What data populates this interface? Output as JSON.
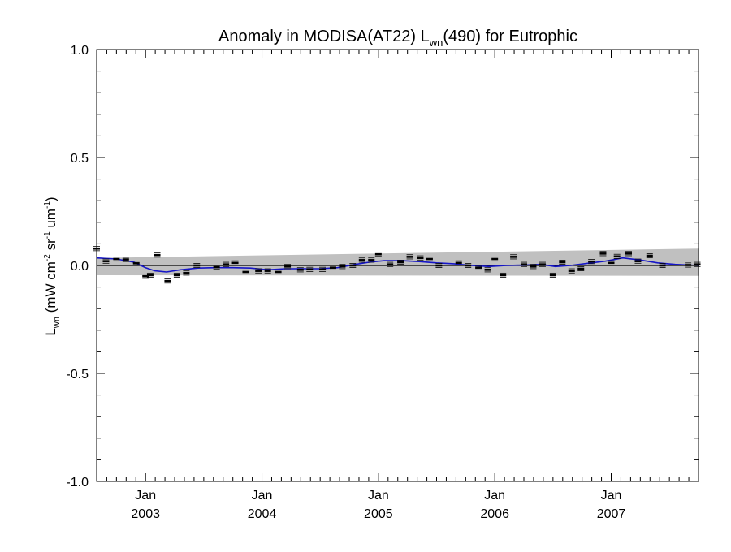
{
  "chart_data": {
    "type": "line",
    "title": "Anomaly in MODISA(AT22) L",
    "title_sub": "wn",
    "title_suffix": "(490) for Eutrophic",
    "ylabel": {
      "base": "L",
      "base_sub": "wn",
      "unit_open": " (mW cm",
      "exp1": "-2",
      "mid": " sr",
      "exp2": "-1",
      "tail": " um",
      "exp3": "-1",
      "close": ")"
    },
    "xlim": [
      2002.58,
      2007.75
    ],
    "ylim": [
      -1.0,
      1.0
    ],
    "yticks": [
      {
        "value": 1.0,
        "label": "1.0"
      },
      {
        "value": 0.5,
        "label": "0.5"
      },
      {
        "value": 0.0,
        "label": "0.0"
      },
      {
        "value": -0.5,
        "label": "-0.5"
      },
      {
        "value": -1.0,
        "label": "-1.0"
      }
    ],
    "xticks": [
      {
        "value": 2003.0,
        "month": "Jan",
        "year": "2003"
      },
      {
        "value": 2004.0,
        "month": "Jan",
        "year": "2004"
      },
      {
        "value": 2005.0,
        "month": "Jan",
        "year": "2005"
      },
      {
        "value": 2006.0,
        "month": "Jan",
        "year": "2006"
      },
      {
        "value": 2007.0,
        "month": "Jan",
        "year": "2007"
      }
    ],
    "zero_line": 0.0,
    "band": {
      "x": [
        2002.58,
        2007.75
      ],
      "upper": [
        0.035,
        0.078
      ],
      "lower": [
        -0.045,
        -0.048
      ]
    },
    "colors": {
      "band": "#c0c0c0",
      "smooth": "#1515c8",
      "points": "#000000"
    },
    "points": [
      {
        "x": 2002.58,
        "y": 0.078
      },
      {
        "x": 2002.66,
        "y": 0.02
      },
      {
        "x": 2002.75,
        "y": 0.03
      },
      {
        "x": 2002.83,
        "y": 0.028
      },
      {
        "x": 2002.92,
        "y": 0.01
      },
      {
        "x": 2003.0,
        "y": -0.05
      },
      {
        "x": 2003.04,
        "y": -0.045
      },
      {
        "x": 2003.1,
        "y": 0.048
      },
      {
        "x": 2003.19,
        "y": -0.072
      },
      {
        "x": 2003.27,
        "y": -0.045
      },
      {
        "x": 2003.35,
        "y": -0.035
      },
      {
        "x": 2003.44,
        "y": 0.0
      },
      {
        "x": 2003.61,
        "y": -0.008
      },
      {
        "x": 2003.69,
        "y": 0.005
      },
      {
        "x": 2003.77,
        "y": 0.012
      },
      {
        "x": 2003.86,
        "y": -0.03
      },
      {
        "x": 2003.97,
        "y": -0.025
      },
      {
        "x": 2004.05,
        "y": -0.025
      },
      {
        "x": 2004.14,
        "y": -0.03
      },
      {
        "x": 2004.22,
        "y": -0.005
      },
      {
        "x": 2004.33,
        "y": -0.02
      },
      {
        "x": 2004.41,
        "y": -0.018
      },
      {
        "x": 2004.52,
        "y": -0.018
      },
      {
        "x": 2004.61,
        "y": -0.01
      },
      {
        "x": 2004.69,
        "y": -0.005
      },
      {
        "x": 2004.78,
        "y": 0.0
      },
      {
        "x": 2004.86,
        "y": 0.025
      },
      {
        "x": 2004.94,
        "y": 0.025
      },
      {
        "x": 2005.0,
        "y": 0.052
      },
      {
        "x": 2005.1,
        "y": 0.005
      },
      {
        "x": 2005.19,
        "y": 0.015
      },
      {
        "x": 2005.27,
        "y": 0.04
      },
      {
        "x": 2005.36,
        "y": 0.035
      },
      {
        "x": 2005.44,
        "y": 0.03
      },
      {
        "x": 2005.52,
        "y": 0.0
      },
      {
        "x": 2005.69,
        "y": 0.012
      },
      {
        "x": 2005.77,
        "y": 0.0
      },
      {
        "x": 2005.86,
        "y": -0.01
      },
      {
        "x": 2005.94,
        "y": -0.02
      },
      {
        "x": 2006.0,
        "y": 0.03
      },
      {
        "x": 2006.07,
        "y": -0.045
      },
      {
        "x": 2006.16,
        "y": 0.04
      },
      {
        "x": 2006.25,
        "y": 0.005
      },
      {
        "x": 2006.33,
        "y": -0.005
      },
      {
        "x": 2006.41,
        "y": 0.005
      },
      {
        "x": 2006.5,
        "y": -0.045
      },
      {
        "x": 2006.58,
        "y": 0.015
      },
      {
        "x": 2006.66,
        "y": -0.025
      },
      {
        "x": 2006.74,
        "y": -0.015
      },
      {
        "x": 2006.83,
        "y": 0.018
      },
      {
        "x": 2006.93,
        "y": 0.055
      },
      {
        "x": 2007.0,
        "y": 0.012
      },
      {
        "x": 2007.05,
        "y": 0.042
      },
      {
        "x": 2007.15,
        "y": 0.055
      },
      {
        "x": 2007.23,
        "y": 0.02
      },
      {
        "x": 2007.33,
        "y": 0.045
      },
      {
        "x": 2007.44,
        "y": 0.0
      },
      {
        "x": 2007.66,
        "y": 0.002
      },
      {
        "x": 2007.74,
        "y": 0.005
      }
    ],
    "smooth": [
      [
        2002.58,
        0.035
      ],
      [
        2002.75,
        0.03
      ],
      [
        2002.9,
        0.015
      ],
      [
        2003.0,
        -0.01
      ],
      [
        2003.08,
        -0.025
      ],
      [
        2003.18,
        -0.03
      ],
      [
        2003.3,
        -0.02
      ],
      [
        2003.45,
        -0.012
      ],
      [
        2003.6,
        -0.01
      ],
      [
        2003.75,
        -0.01
      ],
      [
        2003.9,
        -0.012
      ],
      [
        2004.05,
        -0.02
      ],
      [
        2004.2,
        -0.015
      ],
      [
        2004.35,
        -0.015
      ],
      [
        2004.5,
        -0.015
      ],
      [
        2004.65,
        -0.01
      ],
      [
        2004.8,
        0.005
      ],
      [
        2004.92,
        0.015
      ],
      [
        2005.05,
        0.022
      ],
      [
        2005.2,
        0.022
      ],
      [
        2005.35,
        0.018
      ],
      [
        2005.5,
        0.012
      ],
      [
        2005.65,
        0.008
      ],
      [
        2005.8,
        0.0
      ],
      [
        2005.95,
        -0.005
      ],
      [
        2006.1,
        0.0
      ],
      [
        2006.25,
        0.002
      ],
      [
        2006.4,
        0.005
      ],
      [
        2006.52,
        -0.005
      ],
      [
        2006.65,
        0.0
      ],
      [
        2006.8,
        0.01
      ],
      [
        2006.95,
        0.02
      ],
      [
        2007.1,
        0.035
      ],
      [
        2007.25,
        0.025
      ],
      [
        2007.4,
        0.012
      ],
      [
        2007.55,
        0.005
      ],
      [
        2007.75,
        0.0
      ]
    ]
  }
}
